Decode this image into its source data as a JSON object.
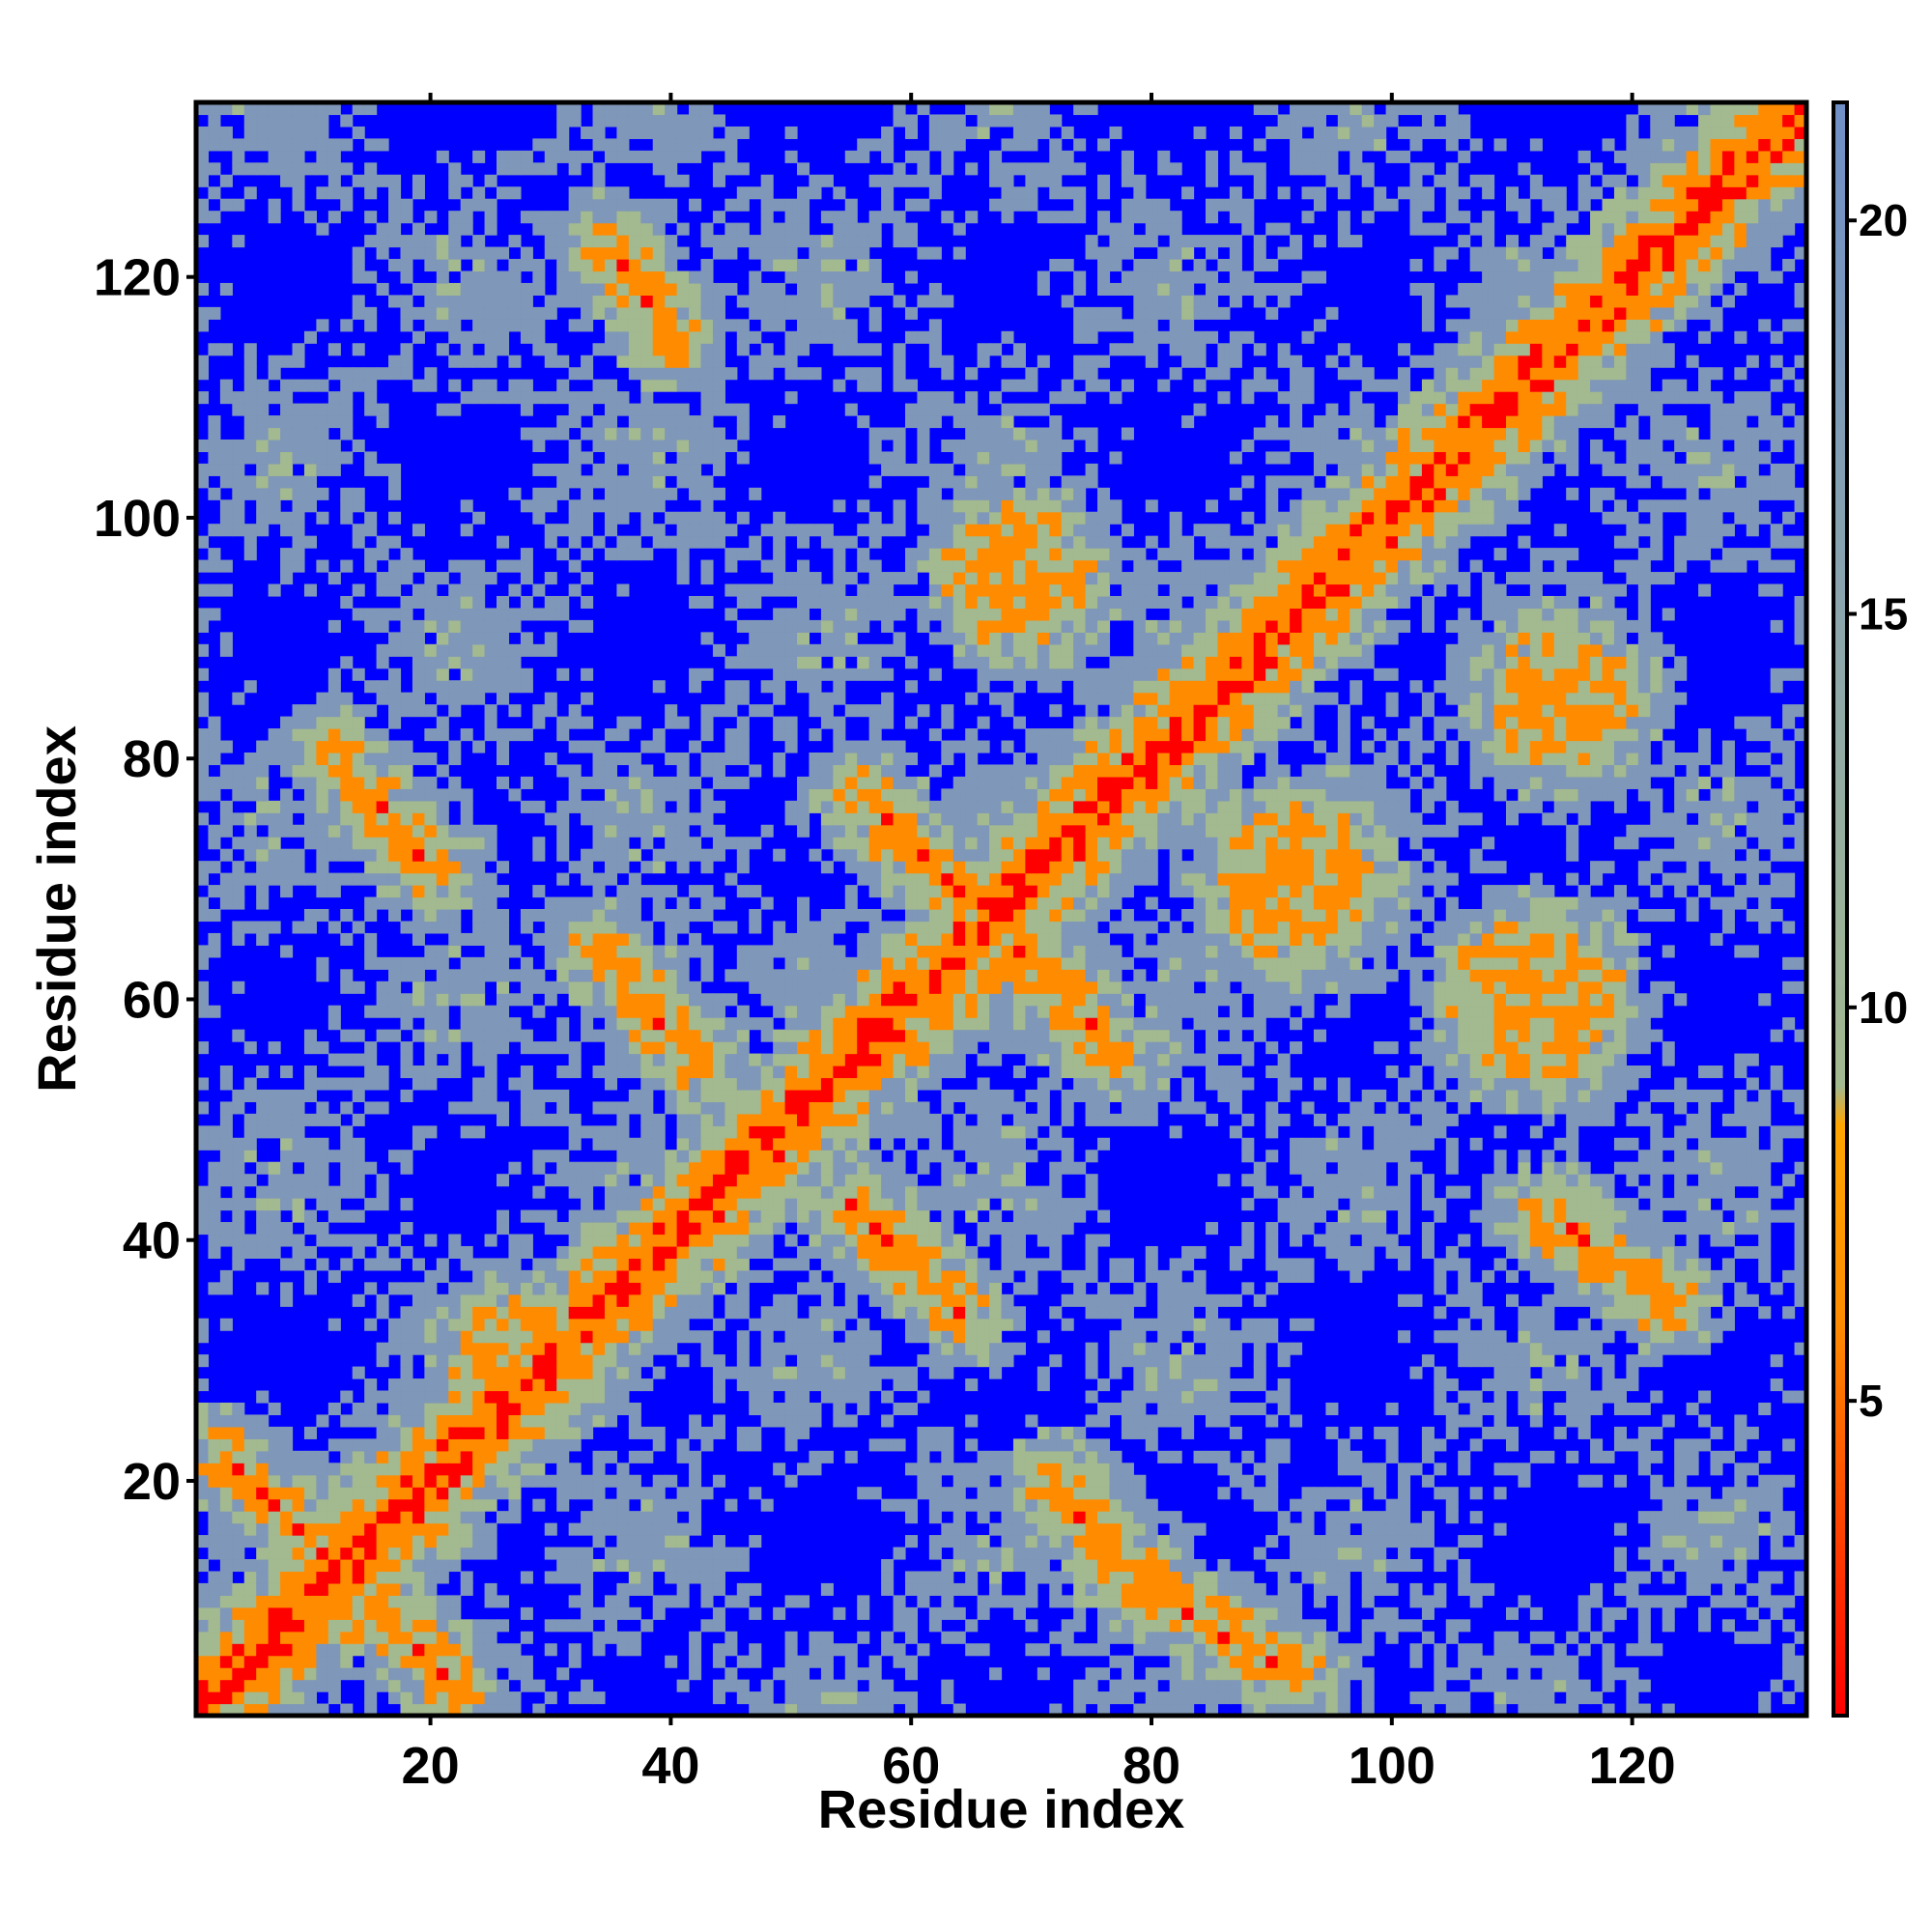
{
  "chart_data": {
    "type": "heatmap",
    "title": "",
    "xlabel": "Residue index",
    "ylabel": "Residue index",
    "xlim": [
      1,
      134
    ],
    "ylim": [
      1,
      134
    ],
    "x_ticks": [
      20,
      40,
      60,
      80,
      100,
      120
    ],
    "y_ticks": [
      20,
      40,
      60,
      80,
      100,
      120
    ],
    "colorbar": {
      "range": [
        1,
        21.5
      ],
      "ticks": [
        5,
        10,
        15,
        20
      ],
      "colors": {
        "near": "#ff0000",
        "mid": "#ff8c00",
        "far": "#a3b98f",
        "farther": "#7f97b8",
        "background": "#0000ff"
      },
      "stops": [
        {
          "value": 1,
          "color": "#ff0000"
        },
        {
          "value": 6,
          "color": "#ff8c00"
        },
        {
          "value": 8.5,
          "color": "#ffa500"
        },
        {
          "value": 9,
          "color": "#a3b98f"
        },
        {
          "value": 14,
          "color": "#8fa9a8"
        },
        {
          "value": 21.5,
          "color": "#6f8fc7"
        }
      ]
    },
    "diagonal": {
      "width_residues": 2,
      "value": 2
    },
    "features": [
      {
        "kind": "anti-diagonal band",
        "from": [
          3,
          22
        ],
        "to": [
          22,
          3
        ]
      },
      {
        "kind": "anti-diagonal band",
        "from": [
          12,
          80
        ],
        "to": [
          20,
          71
        ]
      },
      {
        "kind": "anti-diagonal band",
        "from": [
          34,
          64
        ],
        "to": [
          42,
          55
        ]
      },
      {
        "kind": "anti-diagonal band",
        "from": [
          55,
          43
        ],
        "to": [
          64,
          34
        ]
      },
      {
        "kind": "anti-diagonal band",
        "from": [
          56,
          77
        ],
        "to": [
          64,
          69
        ]
      },
      {
        "kind": "anti-diagonal band",
        "from": [
          69,
          64
        ],
        "to": [
          77,
          55
        ]
      },
      {
        "kind": "anti-diagonal band",
        "from": [
          72,
          20
        ],
        "to": [
          78,
          13
        ]
      },
      {
        "kind": "anti-diagonal band",
        "from": [
          78,
          12
        ],
        "to": [
          92,
          4
        ]
      },
      {
        "kind": "anti-diagonal band",
        "from": [
          35,
          123
        ],
        "to": [
          40,
          115
        ]
      },
      {
        "kind": "anti-diagonal band",
        "from": [
          113,
          42
        ],
        "to": [
          123,
          35
        ]
      },
      {
        "kind": "patch",
        "center": [
          69,
          95
        ],
        "radius": 4
      },
      {
        "kind": "patch",
        "center": [
          92,
          70
        ],
        "radius": 5
      },
      {
        "kind": "patch",
        "center": [
          114,
          85
        ],
        "radius": 4
      },
      {
        "kind": "patch",
        "center": [
          28,
          30
        ],
        "radius": 4
      },
      {
        "kind": "patch",
        "center": [
          112,
          60
        ],
        "radius": 5
      }
    ]
  }
}
